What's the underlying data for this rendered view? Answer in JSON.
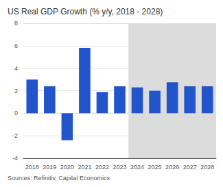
{
  "chart_data": {
    "type": "bar",
    "title": "US Real GDP Growth (% y/y, 2018 - 2028)",
    "categories": [
      "2018",
      "2019",
      "2020",
      "2021",
      "2022",
      "2023",
      "2024",
      "2025",
      "2026",
      "2027",
      "2028"
    ],
    "values": [
      3.0,
      2.4,
      -2.4,
      5.8,
      1.9,
      2.4,
      2.3,
      2.0,
      2.75,
      2.4,
      2.4
    ],
    "color": "#2255CC",
    "forecast": {
      "from": "2024",
      "color": "#DCDCDC"
    },
    "ylim": [
      -4,
      8
    ],
    "yticks": [
      -4,
      -2,
      0,
      2,
      4,
      6,
      8
    ],
    "grid": true,
    "annotations": [
      "Sources: Refinitiv, Capital Economics"
    ]
  }
}
